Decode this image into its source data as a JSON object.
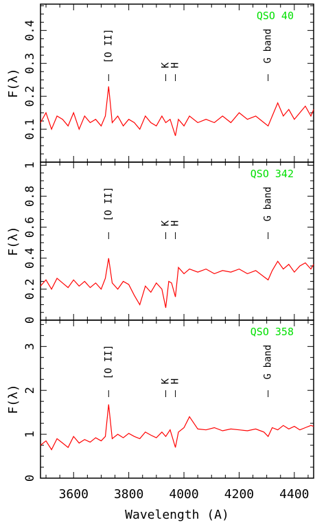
{
  "chart_data": [
    {
      "type": "line",
      "title": "QSO 40",
      "ylabel": "F(λ)",
      "xlim": [
        3480,
        4470
      ],
      "ylim": [
        0,
        0.48
      ],
      "yticks": [
        0.1,
        0.2,
        0.3,
        0.4
      ],
      "ytick_labels": [
        "0.1",
        "0.2",
        "0.3",
        "0.4"
      ],
      "features": [
        {
          "label": "[O II]",
          "x": 3727
        },
        {
          "label": "K",
          "x": 3934
        },
        {
          "label": "H",
          "x": 3969
        },
        {
          "label": "G band",
          "x": 4305
        }
      ],
      "series": [
        {
          "color": "#ff0000",
          "x": [
            3480,
            3500,
            3520,
            3540,
            3560,
            3580,
            3600,
            3620,
            3640,
            3660,
            3680,
            3700,
            3715,
            3727,
            3740,
            3760,
            3780,
            3800,
            3820,
            3840,
            3860,
            3880,
            3900,
            3920,
            3934,
            3950,
            3969,
            3980,
            4000,
            4020,
            4050,
            4080,
            4110,
            4140,
            4170,
            4200,
            4230,
            4260,
            4290,
            4305,
            4320,
            4340,
            4360,
            4380,
            4400,
            4420,
            4440,
            4460,
            4470
          ],
          "y": [
            0.12,
            0.15,
            0.1,
            0.14,
            0.13,
            0.11,
            0.15,
            0.1,
            0.14,
            0.12,
            0.13,
            0.11,
            0.14,
            0.23,
            0.12,
            0.14,
            0.11,
            0.13,
            0.12,
            0.1,
            0.14,
            0.12,
            0.11,
            0.14,
            0.12,
            0.13,
            0.08,
            0.13,
            0.11,
            0.14,
            0.12,
            0.13,
            0.12,
            0.14,
            0.12,
            0.15,
            0.13,
            0.14,
            0.12,
            0.11,
            0.14,
            0.18,
            0.14,
            0.16,
            0.13,
            0.15,
            0.17,
            0.14,
            0.16
          ]
        }
      ]
    },
    {
      "type": "line",
      "title": "QSO 342",
      "ylabel": "F(λ)",
      "xlim": [
        3480,
        4470
      ],
      "ylim": [
        0,
        1.02
      ],
      "yticks": [
        0,
        0.2,
        0.4,
        0.6,
        0.8,
        1.0
      ],
      "ytick_labels": [
        "0",
        "0.2",
        "0.4",
        "0.6",
        "0.8",
        "1"
      ],
      "features": [
        {
          "label": "[O II]",
          "x": 3727
        },
        {
          "label": "K",
          "x": 3934
        },
        {
          "label": "H",
          "x": 3969
        },
        {
          "label": "G band",
          "x": 4305
        }
      ],
      "series": [
        {
          "color": "#ff0000",
          "x": [
            3480,
            3500,
            3520,
            3540,
            3560,
            3580,
            3600,
            3620,
            3640,
            3660,
            3680,
            3700,
            3715,
            3727,
            3740,
            3760,
            3780,
            3800,
            3820,
            3840,
            3860,
            3880,
            3900,
            3920,
            3934,
            3945,
            3955,
            3969,
            3980,
            4000,
            4020,
            4050,
            4080,
            4110,
            4140,
            4170,
            4200,
            4230,
            4260,
            4290,
            4305,
            4320,
            4340,
            4360,
            4380,
            4400,
            4420,
            4440,
            4460,
            4470
          ],
          "y": [
            0.22,
            0.26,
            0.2,
            0.27,
            0.24,
            0.21,
            0.26,
            0.22,
            0.25,
            0.21,
            0.24,
            0.2,
            0.27,
            0.4,
            0.24,
            0.2,
            0.25,
            0.23,
            0.16,
            0.1,
            0.22,
            0.18,
            0.24,
            0.2,
            0.08,
            0.25,
            0.24,
            0.15,
            0.34,
            0.3,
            0.33,
            0.31,
            0.33,
            0.3,
            0.32,
            0.31,
            0.33,
            0.3,
            0.32,
            0.28,
            0.26,
            0.32,
            0.38,
            0.33,
            0.36,
            0.31,
            0.35,
            0.37,
            0.33,
            0.36
          ]
        }
      ]
    },
    {
      "type": "line",
      "title": "QSO 358",
      "ylabel": "F(λ)",
      "xlabel": "Wavelength (A)",
      "xlim": [
        3480,
        4470
      ],
      "ylim": [
        0,
        3.6
      ],
      "yticks": [
        0,
        1,
        2,
        3
      ],
      "ytick_labels": [
        "0",
        "1",
        "2",
        "3"
      ],
      "xticks": [
        3600,
        3800,
        4000,
        4200,
        4400
      ],
      "xtick_labels": [
        "3600",
        "3800",
        "4000",
        "4200",
        "4400"
      ],
      "features": [
        {
          "label": "[O II]",
          "x": 3727
        },
        {
          "label": "K",
          "x": 3934
        },
        {
          "label": "H",
          "x": 3969
        },
        {
          "label": "G band",
          "x": 4305
        }
      ],
      "series": [
        {
          "color": "#ff0000",
          "x": [
            3480,
            3500,
            3520,
            3540,
            3560,
            3580,
            3600,
            3620,
            3640,
            3660,
            3680,
            3700,
            3715,
            3727,
            3740,
            3760,
            3780,
            3800,
            3820,
            3840,
            3860,
            3880,
            3900,
            3920,
            3934,
            3950,
            3969,
            3980,
            4000,
            4020,
            4050,
            4080,
            4110,
            4140,
            4170,
            4200,
            4230,
            4260,
            4290,
            4305,
            4320,
            4340,
            4360,
            4380,
            4400,
            4420,
            4440,
            4460,
            4470
          ],
          "y": [
            0.75,
            0.85,
            0.65,
            0.9,
            0.8,
            0.7,
            0.95,
            0.8,
            0.88,
            0.82,
            0.92,
            0.85,
            0.95,
            1.68,
            0.9,
            1.0,
            0.92,
            1.02,
            0.95,
            0.9,
            1.05,
            0.98,
            0.92,
            1.05,
            0.95,
            1.1,
            0.7,
            1.05,
            1.15,
            1.4,
            1.12,
            1.1,
            1.15,
            1.08,
            1.12,
            1.1,
            1.08,
            1.12,
            1.05,
            0.95,
            1.15,
            1.1,
            1.2,
            1.12,
            1.18,
            1.1,
            1.15,
            1.2,
            1.18
          ]
        }
      ]
    }
  ]
}
